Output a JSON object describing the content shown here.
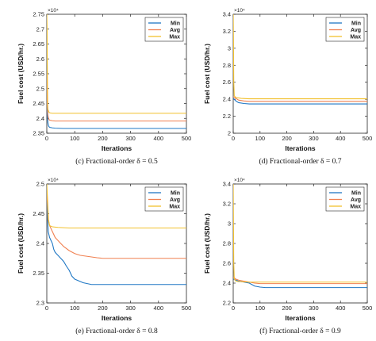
{
  "colors": {
    "min": "#1f77c4",
    "avg": "#f08050",
    "max": "#f2c12e"
  },
  "chart_data": [
    {
      "type": "line",
      "caption": "(c) Fractional-order δ = 0.5",
      "xlabel": "Iterations",
      "ylabel": "Fuel cost (USD/hr.)",
      "multiplier": "×10⁴",
      "xlim": [
        0,
        500
      ],
      "ylim": [
        2.35,
        2.75
      ],
      "xticks": [
        "0",
        "100",
        "200",
        "300",
        "400",
        "500"
      ],
      "yticks": [
        "2.35",
        "2.4",
        "2.45",
        "2.5",
        "2.55",
        "2.6",
        "2.65",
        "2.7",
        "2.75"
      ],
      "legend_position": "top-right",
      "series": [
        {
          "name": "Min",
          "color_key": "min",
          "x": [
            0,
            2,
            4,
            6,
            8,
            10,
            15,
            20,
            30,
            60,
            100,
            500
          ],
          "y": [
            2.46,
            2.41,
            2.385,
            2.375,
            2.372,
            2.37,
            2.369,
            2.368,
            2.367,
            2.366,
            2.366,
            2.366
          ]
        },
        {
          "name": "Avg",
          "color_key": "avg",
          "x": [
            0,
            2,
            4,
            6,
            8,
            10,
            15,
            20,
            30,
            60,
            500
          ],
          "y": [
            2.55,
            2.44,
            2.41,
            2.4,
            2.396,
            2.394,
            2.393,
            2.392,
            2.391,
            2.391,
            2.391
          ]
        },
        {
          "name": "Max",
          "color_key": "max",
          "x": [
            0,
            1,
            2,
            3,
            4,
            6,
            8,
            12,
            20,
            40,
            500
          ],
          "y": [
            2.75,
            2.7,
            2.55,
            2.45,
            2.43,
            2.425,
            2.42,
            2.418,
            2.417,
            2.417,
            2.417
          ]
        }
      ]
    },
    {
      "type": "line",
      "caption": "(d) Fractional-order δ = 0.7",
      "xlabel": "Iterations",
      "ylabel": "Fuel cost (USD/hr.)",
      "multiplier": "×10⁴",
      "xlim": [
        0,
        500
      ],
      "ylim": [
        2.0,
        3.4
      ],
      "xticks": [
        "0",
        "100",
        "200",
        "300",
        "400",
        "500"
      ],
      "yticks": [
        "2",
        "2.2",
        "2.4",
        "2.6",
        "2.8",
        "3",
        "3.2",
        "3.4"
      ],
      "legend_position": "top-right",
      "series": [
        {
          "name": "Min",
          "color_key": "min",
          "x": [
            0,
            10,
            20,
            40,
            60,
            100,
            500
          ],
          "y": [
            2.41,
            2.38,
            2.36,
            2.35,
            2.345,
            2.345,
            2.345
          ]
        },
        {
          "name": "Avg",
          "color_key": "avg",
          "x": [
            0,
            10,
            20,
            40,
            60,
            500
          ],
          "y": [
            2.43,
            2.41,
            2.39,
            2.38,
            2.375,
            2.375
          ]
        },
        {
          "name": "Max",
          "color_key": "max",
          "x": [
            0,
            1,
            2,
            4,
            10,
            30,
            60,
            500
          ],
          "y": [
            3.4,
            3.1,
            2.6,
            2.44,
            2.42,
            2.41,
            2.405,
            2.405
          ]
        }
      ]
    },
    {
      "type": "line",
      "caption": "(e) Fractional-order δ = 0.8",
      "xlabel": "Iterations",
      "ylabel": "Fuel cost (USD/hr.)",
      "multiplier": "×10⁴",
      "xlim": [
        0,
        500
      ],
      "ylim": [
        2.3,
        2.5
      ],
      "xticks": [
        "0",
        "100",
        "200",
        "300",
        "400",
        "500"
      ],
      "yticks": [
        "2.3",
        "2.35",
        "2.4",
        "2.45",
        "2.5"
      ],
      "legend_position": "top-right",
      "series": [
        {
          "name": "Min",
          "color_key": "min",
          "x": [
            0,
            5,
            10,
            15,
            20,
            25,
            30,
            40,
            50,
            60,
            70,
            80,
            90,
            100,
            110,
            120,
            130,
            140,
            150,
            160,
            500
          ],
          "y": [
            2.47,
            2.42,
            2.41,
            2.405,
            2.4,
            2.39,
            2.385,
            2.38,
            2.375,
            2.37,
            2.362,
            2.355,
            2.345,
            2.34,
            2.338,
            2.336,
            2.334,
            2.333,
            2.332,
            2.331,
            2.331
          ]
        },
        {
          "name": "Avg",
          "color_key": "avg",
          "x": [
            0,
            5,
            10,
            20,
            30,
            40,
            50,
            60,
            80,
            100,
            120,
            150,
            180,
            200,
            500
          ],
          "y": [
            2.49,
            2.44,
            2.43,
            2.42,
            2.41,
            2.405,
            2.4,
            2.395,
            2.388,
            2.383,
            2.38,
            2.378,
            2.376,
            2.375,
            2.375
          ]
        },
        {
          "name": "Max",
          "color_key": "max",
          "x": [
            0,
            3,
            6,
            10,
            20,
            40,
            80,
            500
          ],
          "y": [
            2.5,
            2.47,
            2.44,
            2.43,
            2.428,
            2.427,
            2.426,
            2.426
          ]
        }
      ]
    },
    {
      "type": "line",
      "caption": "(f) Fractional-order δ = 0.9",
      "xlabel": "Iterations",
      "ylabel": "Fuel cost (USD/hr.)",
      "multiplier": "×10⁴",
      "xlim": [
        0,
        500
      ],
      "ylim": [
        2.2,
        3.4
      ],
      "xticks": [
        "0",
        "100",
        "200",
        "300",
        "400",
        "500"
      ],
      "yticks": [
        "2.2",
        "2.4",
        "2.6",
        "2.8",
        "3",
        "3.2",
        "3.4"
      ],
      "legend_position": "top-right",
      "series": [
        {
          "name": "Min",
          "color_key": "min",
          "x": [
            0,
            10,
            20,
            40,
            60,
            80,
            100,
            120,
            500
          ],
          "y": [
            2.44,
            2.43,
            2.42,
            2.41,
            2.4,
            2.37,
            2.36,
            2.355,
            2.355
          ]
        },
        {
          "name": "Avg",
          "color_key": "avg",
          "x": [
            0,
            10,
            20,
            40,
            60,
            80,
            100,
            500
          ],
          "y": [
            2.46,
            2.44,
            2.43,
            2.42,
            2.41,
            2.4,
            2.395,
            2.395
          ]
        },
        {
          "name": "Max",
          "color_key": "max",
          "x": [
            0,
            1,
            2,
            4,
            10,
            20,
            60,
            500
          ],
          "y": [
            3.4,
            3.0,
            2.6,
            2.44,
            2.42,
            2.415,
            2.41,
            2.41
          ]
        }
      ]
    }
  ]
}
